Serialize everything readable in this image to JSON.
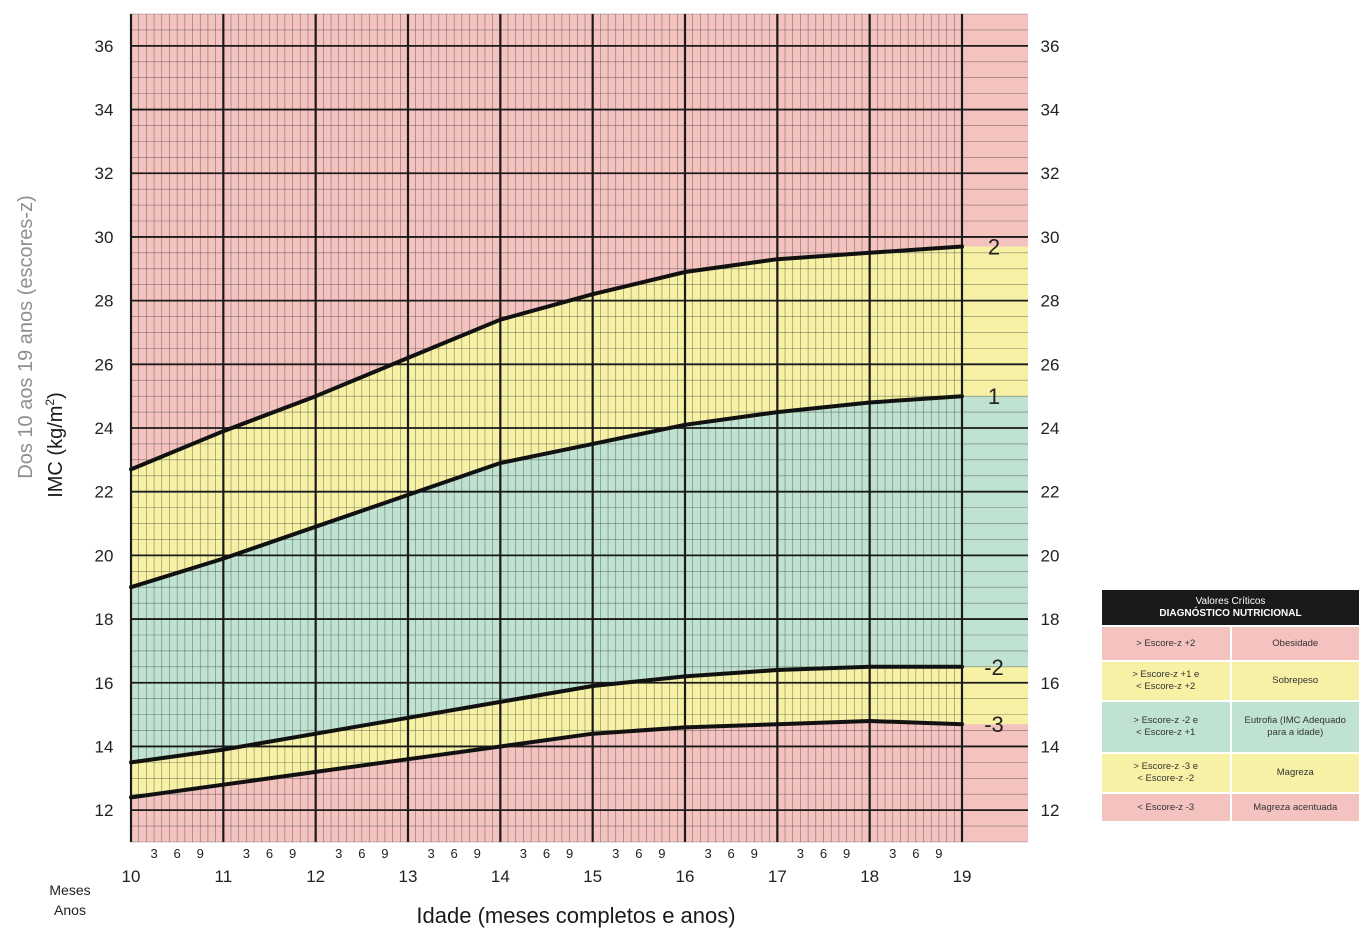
{
  "chart_data": {
    "type": "line",
    "ylabel_line1": "Dos 10 aos 19 anos (escores-z)",
    "ylabel_line2": "IMC (kg/m",
    "ylabel_sup": "2",
    "ylabel_close": ")",
    "xlabel": "Idade (meses completos e anos)",
    "months_caption": "Meses",
    "years_caption": "Anos",
    "x_years": [
      "10",
      "11",
      "12",
      "13",
      "14",
      "15",
      "16",
      "17",
      "18",
      "19"
    ],
    "x_months": [
      "3",
      "6",
      "9"
    ],
    "y_ticks": [
      12,
      14,
      16,
      18,
      20,
      22,
      24,
      26,
      28,
      30,
      32,
      34,
      36
    ],
    "xlim": [
      10,
      19
    ],
    "ylim": [
      11,
      37
    ],
    "series": [
      {
        "name": "2",
        "x": [
          10,
          11,
          12,
          13,
          14,
          15,
          16,
          17,
          18,
          19
        ],
        "values": [
          22.7,
          23.9,
          25.0,
          26.2,
          27.4,
          28.2,
          28.9,
          29.3,
          29.5,
          29.7
        ]
      },
      {
        "name": "1",
        "x": [
          10,
          11,
          12,
          13,
          14,
          15,
          16,
          17,
          18,
          19
        ],
        "values": [
          19.0,
          19.9,
          20.9,
          21.9,
          22.9,
          23.5,
          24.1,
          24.5,
          24.8,
          25.0
        ]
      },
      {
        "name": "-2",
        "x": [
          10,
          11,
          12,
          13,
          14,
          15,
          16,
          17,
          18,
          19
        ],
        "values": [
          13.5,
          13.9,
          14.4,
          14.9,
          15.4,
          15.9,
          16.2,
          16.4,
          16.5,
          16.5
        ]
      },
      {
        "name": "-3",
        "x": [
          10,
          11,
          12,
          13,
          14,
          15,
          16,
          17,
          18,
          19
        ],
        "values": [
          12.4,
          12.8,
          13.2,
          13.6,
          14.0,
          14.4,
          14.6,
          14.7,
          14.8,
          14.7
        ]
      }
    ],
    "zone_colors": {
      "obesidade": "#f4c3bf",
      "sobrepeso": "#f7f1a5",
      "eutrofia": "#bfe3d0",
      "magreza": "#f7f1a5",
      "magreza_acentuada": "#f4c3bf"
    },
    "grid": true
  },
  "legend": {
    "title": "Valores Críticos",
    "subtitle": "DIAGNÓSTICO NUTRICIONAL",
    "rows": [
      {
        "criteria": "> Escore-z +2",
        "diagnosis": "Obesidade",
        "color": "#f4c3bf"
      },
      {
        "criteria": "> Escore-z +1 e\n< Escore-z +2",
        "diagnosis": "Sobrepeso",
        "color": "#f7f1a5"
      },
      {
        "criteria": "> Escore-z -2 e\n< Escore-z +1",
        "diagnosis": "Eutrofia (IMC Adequado\npara a idade)",
        "color": "#bfe3d0"
      },
      {
        "criteria": "> Escore-z -3 e\n< Escore-z -2",
        "diagnosis": "Magreza",
        "color": "#f7f1a5"
      },
      {
        "criteria": "< Escore-z -3",
        "diagnosis": "Magreza acentuada",
        "color": "#f4c3bf"
      }
    ]
  }
}
